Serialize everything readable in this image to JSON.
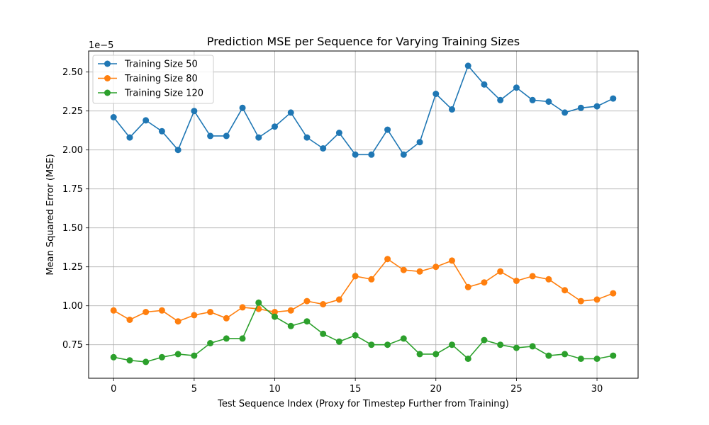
{
  "chart_data": {
    "type": "line",
    "title": "Prediction MSE per Sequence for Varying Training Sizes",
    "xlabel": "Test Sequence Index (Proxy for Timestep Further from Training)",
    "ylabel": "Mean Squared Error (MSE)",
    "y_offset_label": "1e−5",
    "x": [
      0,
      1,
      2,
      3,
      4,
      5,
      6,
      7,
      8,
      9,
      10,
      11,
      12,
      13,
      14,
      15,
      16,
      17,
      18,
      19,
      20,
      21,
      22,
      23,
      24,
      25,
      26,
      27,
      28,
      29,
      30,
      31
    ],
    "xlim": [
      -1.55,
      32.55
    ],
    "ylim": [
      0.535,
      2.635
    ],
    "x_ticks": [
      0,
      5,
      10,
      15,
      20,
      25,
      30
    ],
    "x_tick_labels": [
      "0",
      "5",
      "10",
      "15",
      "20",
      "25",
      "30"
    ],
    "y_ticks": [
      0.75,
      1.0,
      1.25,
      1.5,
      1.75,
      2.0,
      2.25,
      2.5
    ],
    "y_tick_labels": [
      "0.75",
      "1.00",
      "1.25",
      "1.50",
      "1.75",
      "2.00",
      "2.25",
      "2.50"
    ],
    "grid": true,
    "legend_position": "upper-left",
    "series": [
      {
        "name": "Training Size 50",
        "color": "#1f77b4",
        "values": [
          2.21,
          2.08,
          2.19,
          2.12,
          2.0,
          2.25,
          2.09,
          2.09,
          2.27,
          2.08,
          2.15,
          2.24,
          2.08,
          2.01,
          2.11,
          1.97,
          1.97,
          2.13,
          1.97,
          2.05,
          2.36,
          2.26,
          2.54,
          2.42,
          2.32,
          2.4,
          2.32,
          2.31,
          2.24,
          2.27,
          2.28,
          2.33
        ]
      },
      {
        "name": "Training Size 80",
        "color": "#ff7f0e",
        "values": [
          0.97,
          0.91,
          0.96,
          0.97,
          0.9,
          0.94,
          0.96,
          0.92,
          0.99,
          0.98,
          0.96,
          0.97,
          1.03,
          1.01,
          1.04,
          1.19,
          1.17,
          1.3,
          1.23,
          1.22,
          1.25,
          1.29,
          1.12,
          1.15,
          1.22,
          1.16,
          1.19,
          1.17,
          1.1,
          1.03,
          1.04,
          1.08
        ]
      },
      {
        "name": "Training Size 120",
        "color": "#2ca02c",
        "values": [
          0.67,
          0.65,
          0.64,
          0.67,
          0.69,
          0.68,
          0.76,
          0.79,
          0.79,
          1.02,
          0.93,
          0.87,
          0.9,
          0.82,
          0.77,
          0.81,
          0.75,
          0.75,
          0.79,
          0.69,
          0.69,
          0.75,
          0.66,
          0.78,
          0.75,
          0.73,
          0.74,
          0.68,
          0.69,
          0.66,
          0.66,
          0.68
        ]
      }
    ]
  }
}
